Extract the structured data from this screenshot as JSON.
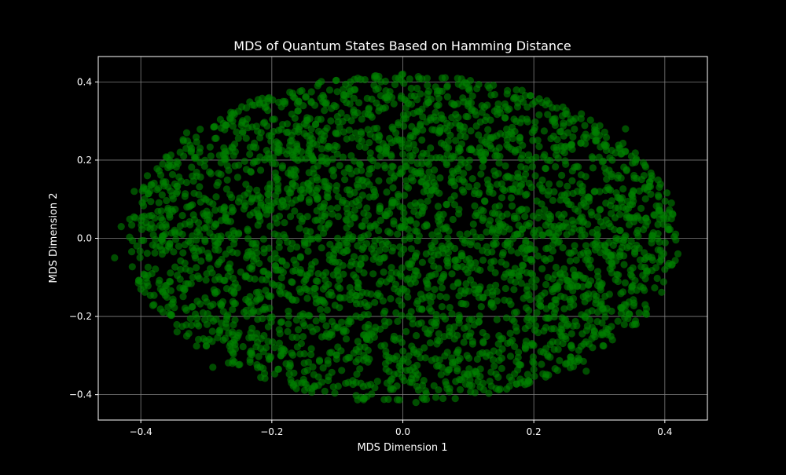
{
  "chart_data": {
    "type": "scatter",
    "title": "MDS of Quantum States Based on Hamming Distance",
    "xlabel": "MDS Dimension 1",
    "ylabel": "MDS Dimension 2",
    "xlim": [
      -0.465,
      0.465
    ],
    "ylim": [
      -0.465,
      0.465
    ],
    "xticks": [
      -0.4,
      -0.2,
      0.0,
      0.2,
      0.4
    ],
    "yticks": [
      -0.4,
      -0.2,
      0.0,
      0.2,
      0.4
    ],
    "xtick_labels": [
      "−0.4",
      "−0.2",
      "0.0",
      "0.2",
      "0.4"
    ],
    "ytick_labels": [
      "−0.4",
      "−0.2",
      "0.0",
      "0.2",
      "0.4"
    ],
    "grid": true,
    "marker_color": "#008000",
    "marker_opacity": 0.6,
    "background_color": "#000000",
    "text_color": "#ffffff",
    "grid_color": "#808080",
    "point_distribution": {
      "shape": "filled ellipse",
      "center": [
        0.0,
        0.0
      ],
      "x_radius": 0.42,
      "y_radius": 0.42
    },
    "points": [
      [
        -0.43,
        0.03
      ],
      [
        -0.44,
        -0.05
      ],
      [
        0.42,
        -0.04
      ],
      [
        0.41,
        0.05
      ],
      [
        0.4,
        -0.08
      ],
      [
        0.39,
        0.11
      ],
      [
        -0.41,
        0.12
      ],
      [
        -0.4,
        -0.13
      ],
      [
        -0.39,
        0.16
      ],
      [
        -0.38,
        -0.17
      ],
      [
        0.38,
        0.16
      ],
      [
        0.37,
        -0.17
      ],
      [
        -0.34,
        0.22
      ],
      [
        -0.33,
        -0.25
      ],
      [
        0.33,
        0.23
      ],
      [
        0.32,
        -0.26
      ],
      [
        -0.27,
        0.29
      ],
      [
        -0.26,
        -0.32
      ],
      [
        0.26,
        0.3
      ],
      [
        0.25,
        -0.32
      ],
      [
        -0.18,
        0.35
      ],
      [
        -0.17,
        -0.37
      ],
      [
        0.17,
        0.36
      ],
      [
        0.18,
        -0.37
      ],
      [
        -0.08,
        0.4
      ],
      [
        -0.06,
        -0.41
      ],
      [
        0.06,
        0.41
      ],
      [
        0.08,
        -0.41
      ],
      [
        0.0,
        0.42
      ],
      [
        0.02,
        -0.42
      ],
      [
        -0.13,
        0.39
      ],
      [
        0.13,
        0.39
      ],
      [
        0.28,
        -0.34
      ],
      [
        -0.29,
        -0.33
      ],
      [
        0.34,
        0.28
      ],
      [
        -0.33,
        0.27
      ]
    ]
  }
}
